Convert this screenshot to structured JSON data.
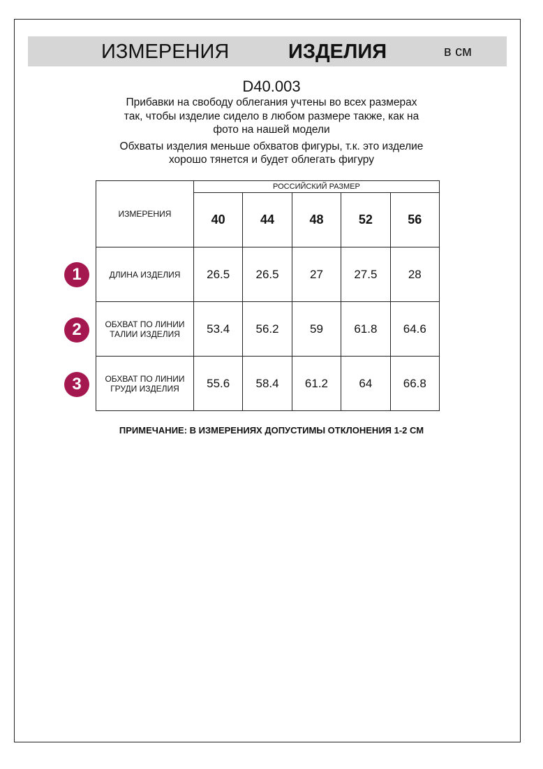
{
  "header": {
    "title_left": "ИЗМЕРЕНИЯ",
    "title_right": "ИЗДЕЛИЯ",
    "units": "в см"
  },
  "code": "D40.003",
  "notes": [
    "Прибавки на свободу облегания учтены во всех размерах",
    "так, чтобы изделие сидело в любом размере также, как на",
    "фото на нашей модели",
    "Обхваты изделия меньше обхватов фигуры, т.к. это изделие",
    "хорошо тянется и будет облегать фигуру"
  ],
  "table": {
    "corner": "ИЗМЕРЕНИЯ",
    "group_header": "РОССИЙСКИЙ РАЗМЕР",
    "sizes": [
      "40",
      "44",
      "48",
      "52",
      "56"
    ],
    "rows": [
      {
        "num": "1",
        "label": "ДЛИНА ИЗДЕЛИЯ",
        "values": [
          "26.5",
          "26.5",
          "27",
          "27.5",
          "28"
        ]
      },
      {
        "num": "2",
        "label": "ОБХВАТ ПО ЛИНИИ ТАЛИИ ИЗДЕЛИЯ",
        "values": [
          "53.4",
          "56.2",
          "59",
          "61.8",
          "64.6"
        ]
      },
      {
        "num": "3",
        "label": "ОБХВАТ ПО ЛИНИИ ГРУДИ ИЗДЕЛИЯ",
        "values": [
          "55.6",
          "58.4",
          "61.2",
          "64",
          "66.8"
        ]
      }
    ]
  },
  "footnote": "ПРИМЕЧАНИЕ: В ИЗМЕРЕНИЯХ ДОПУСТИМЫ ОТКЛОНЕНИЯ 1-2 СМ",
  "colors": {
    "badge": "#a5174f",
    "banner": "#d6d6d6"
  }
}
